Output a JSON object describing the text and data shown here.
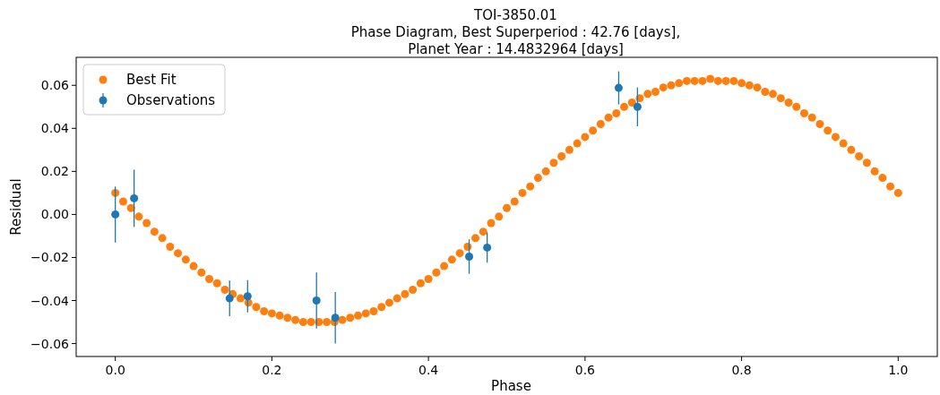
{
  "chart_data": {
    "type": "scatter",
    "title": "TOI-3850.01",
    "subtitle": "Phase Diagram, Best Superperiod : 42.76 [days],\nPlanet Year : 14.4832964 [days]",
    "xlabel": "Phase",
    "ylabel": "Residual",
    "xlim": [
      -0.05,
      1.05
    ],
    "ylim": [
      -0.066,
      0.073
    ],
    "xticks": [
      {
        "value": 0,
        "label": "0.0"
      },
      0.2,
      0.4,
      0.6,
      0.8,
      {
        "value": 1,
        "label": "1.0"
      }
    ],
    "yticks": [
      {
        "value": -0.06,
        "label": "−0.06"
      },
      {
        "value": -0.04,
        "label": "−0.04"
      },
      {
        "value": -0.02,
        "label": "−0.02"
      },
      {
        "value": 0,
        "label": "0.00"
      },
      {
        "value": 0.02,
        "label": "0.02"
      },
      {
        "value": 0.04,
        "label": "0.04"
      },
      {
        "value": 0.06,
        "label": "0.06"
      }
    ],
    "grid": false,
    "legend": "top left",
    "marker": "circle",
    "series": [
      {
        "name": "Best Fit",
        "color": "#ff7f0e",
        "x": [
          0,
          0.01,
          0.02,
          0.03,
          0.04,
          0.05,
          0.06,
          0.07,
          0.08,
          0.09,
          0.1,
          0.11,
          0.12,
          0.13,
          0.14,
          0.15,
          0.16,
          0.17,
          0.18,
          0.19,
          0.2,
          0.21,
          0.22,
          0.23,
          0.24,
          0.25,
          0.26,
          0.27,
          0.28,
          0.29,
          0.3,
          0.31,
          0.32,
          0.33,
          0.34,
          0.35,
          0.36,
          0.37,
          0.38,
          0.39,
          0.4,
          0.41,
          0.42,
          0.43,
          0.44,
          0.45,
          0.46,
          0.47,
          0.48,
          0.49,
          0.5,
          0.51,
          0.52,
          0.53,
          0.54,
          0.55,
          0.56,
          0.57,
          0.58,
          0.59,
          0.6,
          0.61,
          0.62,
          0.63,
          0.64,
          0.65,
          0.66,
          0.67,
          0.68,
          0.69,
          0.7,
          0.71,
          0.72,
          0.73,
          0.74,
          0.75,
          0.76,
          0.77,
          0.78,
          0.79,
          0.8,
          0.81,
          0.82,
          0.83,
          0.84,
          0.85,
          0.86,
          0.87,
          0.88,
          0.89,
          0.9,
          0.91,
          0.92,
          0.93,
          0.94,
          0.95,
          0.96,
          0.97,
          0.98,
          0.99,
          1
        ],
        "values": [
          0.01,
          0.006,
          0.003,
          -0.001,
          -0.004,
          -0.008,
          -0.011,
          -0.015,
          -0.018,
          -0.021,
          -0.024,
          -0.027,
          -0.03,
          -0.032,
          -0.035,
          -0.037,
          -0.039,
          -0.041,
          -0.043,
          -0.045,
          -0.046,
          -0.047,
          -0.048,
          -0.049,
          -0.05,
          -0.05,
          -0.05,
          -0.05,
          -0.05,
          -0.049,
          -0.048,
          -0.047,
          -0.046,
          -0.045,
          -0.043,
          -0.041,
          -0.039,
          -0.037,
          -0.035,
          -0.032,
          -0.03,
          -0.027,
          -0.024,
          -0.021,
          -0.018,
          -0.015,
          -0.011,
          -0.008,
          -0.004,
          -0.001,
          0.003,
          0.006,
          0.01,
          0.013,
          0.017,
          0.02,
          0.024,
          0.027,
          0.03,
          0.033,
          0.036,
          0.039,
          0.042,
          0.045,
          0.047,
          0.05,
          0.052,
          0.054,
          0.056,
          0.057,
          0.059,
          0.06,
          0.061,
          0.062,
          0.062,
          0.062,
          0.063,
          0.062,
          0.062,
          0.062,
          0.061,
          0.06,
          0.059,
          0.057,
          0.056,
          0.054,
          0.052,
          0.05,
          0.047,
          0.045,
          0.042,
          0.039,
          0.036,
          0.033,
          0.03,
          0.027,
          0.024,
          0.02,
          0.017,
          0.013,
          0.01
        ]
      },
      {
        "name": "Observations",
        "color": "#1f77b4",
        "x": [
          0,
          0.024,
          0.146,
          0.169,
          0.257,
          0.281,
          0.452,
          0.475,
          0.643,
          0.667
        ],
        "values": [
          0.0,
          0.0075,
          -0.039,
          -0.038,
          -0.04,
          -0.048,
          -0.0196,
          -0.0154,
          0.0588,
          0.05
        ],
        "errors": [
          0.013,
          0.0133,
          0.0083,
          0.0075,
          0.013,
          0.012,
          0.008,
          0.007,
          0.0077,
          0.009
        ]
      }
    ]
  }
}
